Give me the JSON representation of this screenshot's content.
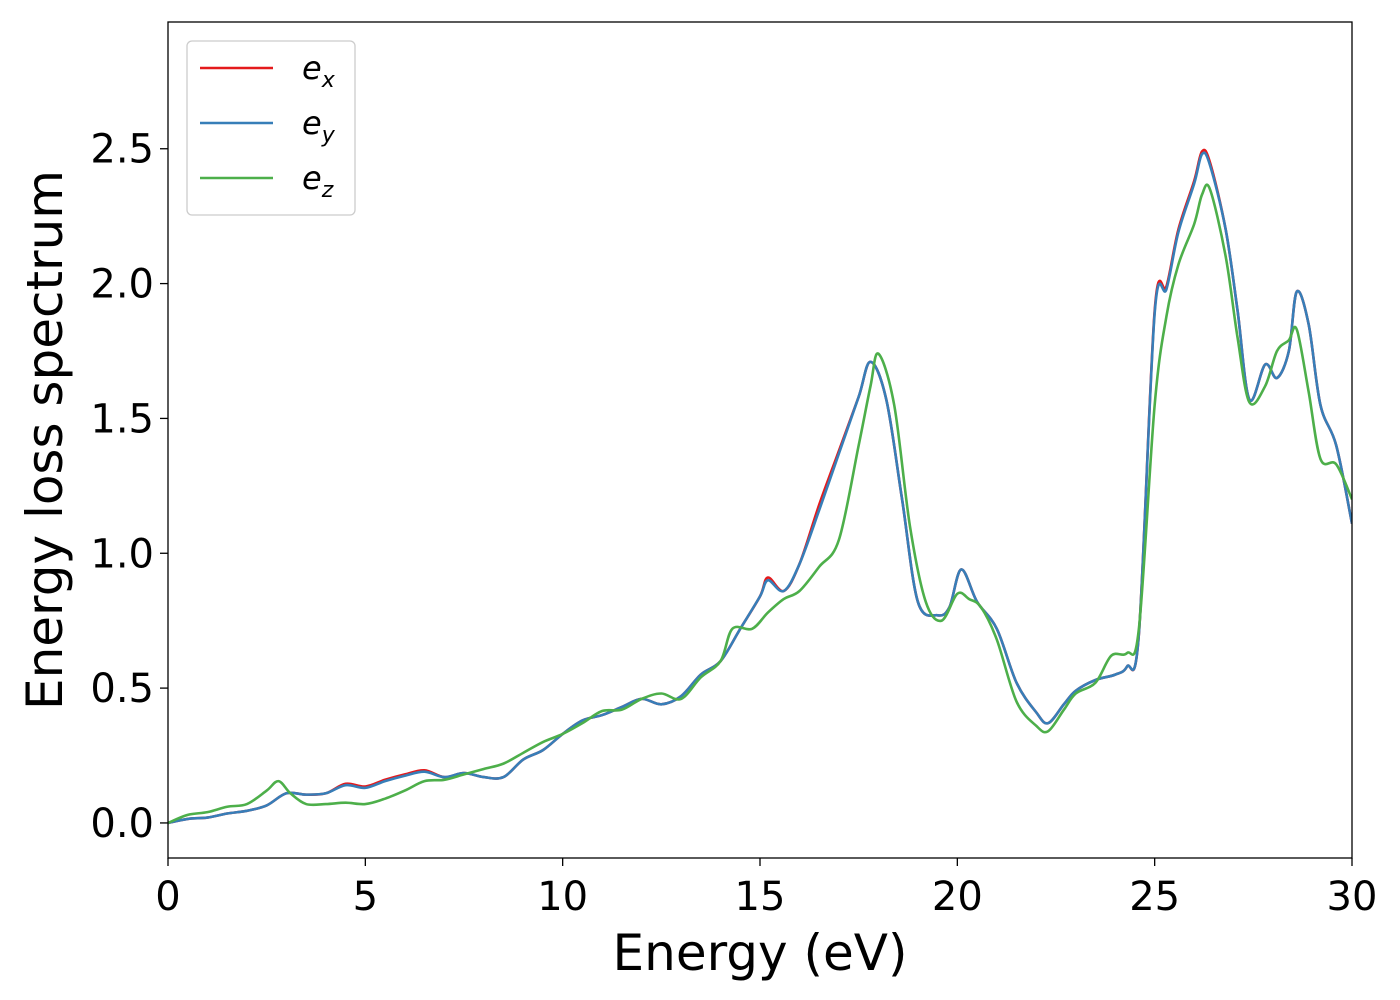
{
  "chart_data": {
    "type": "line",
    "xlabel": "Energy (eV)",
    "ylabel": "Energy loss spectrum",
    "xlim": [
      0,
      30
    ],
    "ylim": [
      -0.13,
      2.97
    ],
    "xticks": [
      0,
      5,
      10,
      15,
      20,
      25,
      30
    ],
    "xtick_labels": [
      "0",
      "5",
      "10",
      "15",
      "20",
      "25",
      "30"
    ],
    "yticks": [
      0.0,
      0.5,
      1.0,
      1.5,
      2.0,
      2.5
    ],
    "ytick_labels": [
      "0.0",
      "0.5",
      "1.0",
      "1.5",
      "2.0",
      "2.5"
    ],
    "grid": false,
    "legend_position": "top-left",
    "series": [
      {
        "name": "e",
        "sub": "x",
        "color": "#e41a1c",
        "x": [
          0,
          0.5,
          1,
          1.5,
          2,
          2.5,
          3,
          3.5,
          4,
          4.5,
          5,
          5.5,
          6,
          6.5,
          7,
          7.5,
          8,
          8.5,
          9,
          9.5,
          10,
          10.5,
          11,
          11.5,
          12,
          12.5,
          13,
          13.5,
          14,
          14.5,
          15,
          15.2,
          15.6,
          16,
          16.5,
          17,
          17.5,
          17.8,
          18.2,
          18.6,
          19,
          19.5,
          19.8,
          20.1,
          20.5,
          21,
          21.5,
          22,
          22.3,
          22.7,
          23,
          23.5,
          24,
          24.3,
          24.6,
          25,
          25.3,
          25.6,
          26,
          26.2,
          26.4,
          26.8,
          27.1,
          27.4,
          27.8,
          28.1,
          28.4,
          28.6,
          28.9,
          29.2,
          29.6,
          30
        ],
        "y": [
          0.0,
          0.015,
          0.02,
          0.035,
          0.045,
          0.065,
          0.11,
          0.105,
          0.11,
          0.145,
          0.135,
          0.16,
          0.18,
          0.195,
          0.17,
          0.185,
          0.17,
          0.17,
          0.235,
          0.27,
          0.33,
          0.38,
          0.4,
          0.43,
          0.46,
          0.44,
          0.47,
          0.55,
          0.6,
          0.72,
          0.84,
          0.91,
          0.86,
          0.96,
          1.18,
          1.38,
          1.58,
          1.71,
          1.57,
          1.2,
          0.82,
          0.77,
          0.8,
          0.94,
          0.82,
          0.72,
          0.52,
          0.41,
          0.37,
          0.44,
          0.49,
          0.53,
          0.55,
          0.58,
          0.7,
          1.9,
          1.99,
          2.2,
          2.38,
          2.49,
          2.45,
          2.2,
          1.9,
          1.57,
          1.7,
          1.65,
          1.75,
          1.97,
          1.85,
          1.55,
          1.4,
          1.11
        ]
      },
      {
        "name": "e",
        "sub": "y",
        "color": "#377eb8",
        "x": [
          0,
          0.5,
          1,
          1.5,
          2,
          2.5,
          3,
          3.5,
          4,
          4.5,
          5,
          5.5,
          6,
          6.5,
          7,
          7.5,
          8,
          8.5,
          9,
          9.5,
          10,
          10.5,
          11,
          11.5,
          12,
          12.5,
          13,
          13.5,
          14,
          14.5,
          15,
          15.2,
          15.6,
          16,
          16.5,
          17,
          17.5,
          17.8,
          18.2,
          18.6,
          19,
          19.5,
          19.8,
          20.1,
          20.5,
          21,
          21.5,
          22,
          22.3,
          22.7,
          23,
          23.5,
          24,
          24.3,
          24.6,
          25,
          25.3,
          25.6,
          26,
          26.2,
          26.4,
          26.8,
          27.1,
          27.4,
          27.8,
          28.1,
          28.4,
          28.6,
          28.9,
          29.2,
          29.6,
          30
        ],
        "y": [
          0.0,
          0.015,
          0.02,
          0.035,
          0.045,
          0.065,
          0.11,
          0.105,
          0.11,
          0.14,
          0.13,
          0.155,
          0.175,
          0.19,
          0.17,
          0.185,
          0.17,
          0.17,
          0.235,
          0.27,
          0.33,
          0.38,
          0.4,
          0.43,
          0.46,
          0.44,
          0.47,
          0.55,
          0.6,
          0.72,
          0.84,
          0.9,
          0.86,
          0.96,
          1.16,
          1.37,
          1.58,
          1.71,
          1.57,
          1.2,
          0.82,
          0.77,
          0.8,
          0.94,
          0.82,
          0.72,
          0.52,
          0.41,
          0.37,
          0.44,
          0.49,
          0.53,
          0.55,
          0.58,
          0.7,
          1.89,
          1.98,
          2.19,
          2.37,
          2.48,
          2.44,
          2.2,
          1.9,
          1.57,
          1.7,
          1.65,
          1.75,
          1.97,
          1.85,
          1.55,
          1.4,
          1.11
        ]
      },
      {
        "name": "e",
        "sub": "z",
        "color": "#4daf4a",
        "x": [
          0,
          0.5,
          1,
          1.5,
          2,
          2.5,
          2.8,
          3.1,
          3.5,
          4,
          4.5,
          5,
          5.5,
          6,
          6.5,
          7,
          7.5,
          8,
          8.5,
          9,
          9.5,
          10,
          10.5,
          11,
          11.5,
          12,
          12.5,
          13,
          13.5,
          14,
          14.3,
          14.8,
          15.2,
          15.6,
          16,
          16.5,
          17,
          17.5,
          17.8,
          18.0,
          18.4,
          18.8,
          19.2,
          19.6,
          20.0,
          20.3,
          20.6,
          21,
          21.5,
          22,
          22.3,
          22.7,
          23,
          23.5,
          23.9,
          24.3,
          24.6,
          25,
          25.3,
          25.6,
          26,
          26.2,
          26.4,
          26.8,
          27.1,
          27.4,
          27.8,
          28.1,
          28.4,
          28.6,
          28.9,
          29.2,
          29.6,
          30
        ],
        "y": [
          0.0,
          0.03,
          0.04,
          0.06,
          0.07,
          0.12,
          0.155,
          0.11,
          0.07,
          0.07,
          0.075,
          0.07,
          0.09,
          0.12,
          0.155,
          0.16,
          0.18,
          0.2,
          0.22,
          0.26,
          0.3,
          0.33,
          0.37,
          0.415,
          0.42,
          0.46,
          0.48,
          0.46,
          0.54,
          0.6,
          0.72,
          0.72,
          0.78,
          0.83,
          0.86,
          0.95,
          1.05,
          1.4,
          1.62,
          1.74,
          1.55,
          1.1,
          0.82,
          0.75,
          0.85,
          0.83,
          0.8,
          0.68,
          0.45,
          0.36,
          0.34,
          0.42,
          0.48,
          0.52,
          0.62,
          0.63,
          0.72,
          1.55,
          1.88,
          2.07,
          2.22,
          2.33,
          2.35,
          2.1,
          1.8,
          1.56,
          1.62,
          1.75,
          1.79,
          1.83,
          1.6,
          1.35,
          1.33,
          1.2
        ]
      }
    ]
  }
}
